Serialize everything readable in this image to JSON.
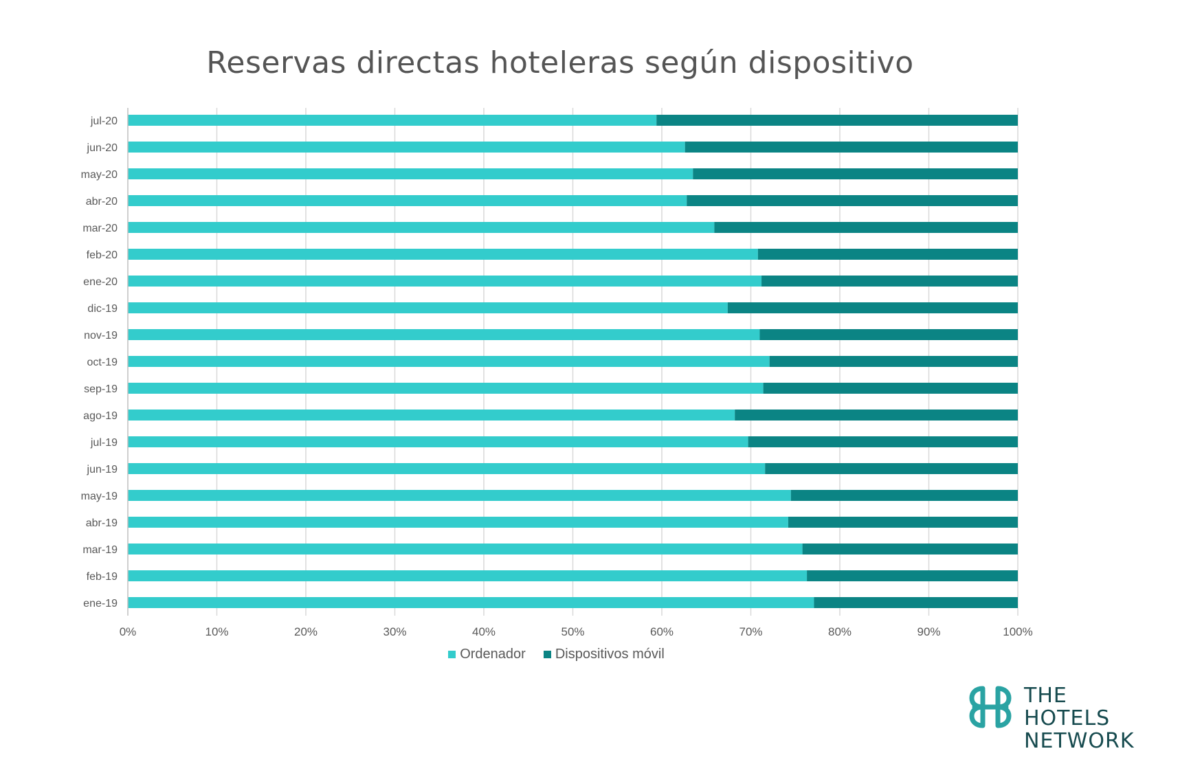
{
  "chart_data": {
    "type": "bar",
    "orientation": "horizontal",
    "stacked": "percent",
    "title": "Reservas directas hoteleras según dispositivo",
    "categories": [
      "jul-20",
      "jun-20",
      "may-20",
      "abr-20",
      "mar-20",
      "feb-20",
      "ene-20",
      "dic-19",
      "nov-19",
      "oct-19",
      "sep-19",
      "ago-19",
      "jul-19",
      "jun-19",
      "may-19",
      "abr-19",
      "mar-19",
      "feb-19",
      "ene-19"
    ],
    "series": [
      {
        "name": "Ordenador",
        "color": "#33cccc",
        "values": [
          59.4,
          62.6,
          63.5,
          62.8,
          65.9,
          70.8,
          71.2,
          67.4,
          71.0,
          72.1,
          71.4,
          68.2,
          69.7,
          71.6,
          74.5,
          74.2,
          75.8,
          76.3,
          77.1
        ]
      },
      {
        "name": "Dispositivos móvil",
        "color": "#0b8484",
        "values": [
          40.6,
          37.4,
          36.5,
          37.2,
          34.1,
          29.2,
          28.8,
          32.6,
          29.0,
          27.9,
          28.6,
          31.8,
          30.3,
          28.4,
          25.5,
          25.8,
          24.2,
          23.7,
          22.9
        ]
      }
    ],
    "xlim": [
      0,
      100
    ],
    "xticks": [
      "0%",
      "10%",
      "20%",
      "30%",
      "40%",
      "50%",
      "60%",
      "70%",
      "80%",
      "90%",
      "100%"
    ],
    "grid": true,
    "legend_position": "bottom"
  },
  "brand": {
    "logo_icon": "hotels-network-logo-icon",
    "lines": [
      "THE",
      "HOTELS",
      "NETWORK"
    ],
    "icon_color": "#2aa3a3",
    "text_color": "#174b4f"
  }
}
